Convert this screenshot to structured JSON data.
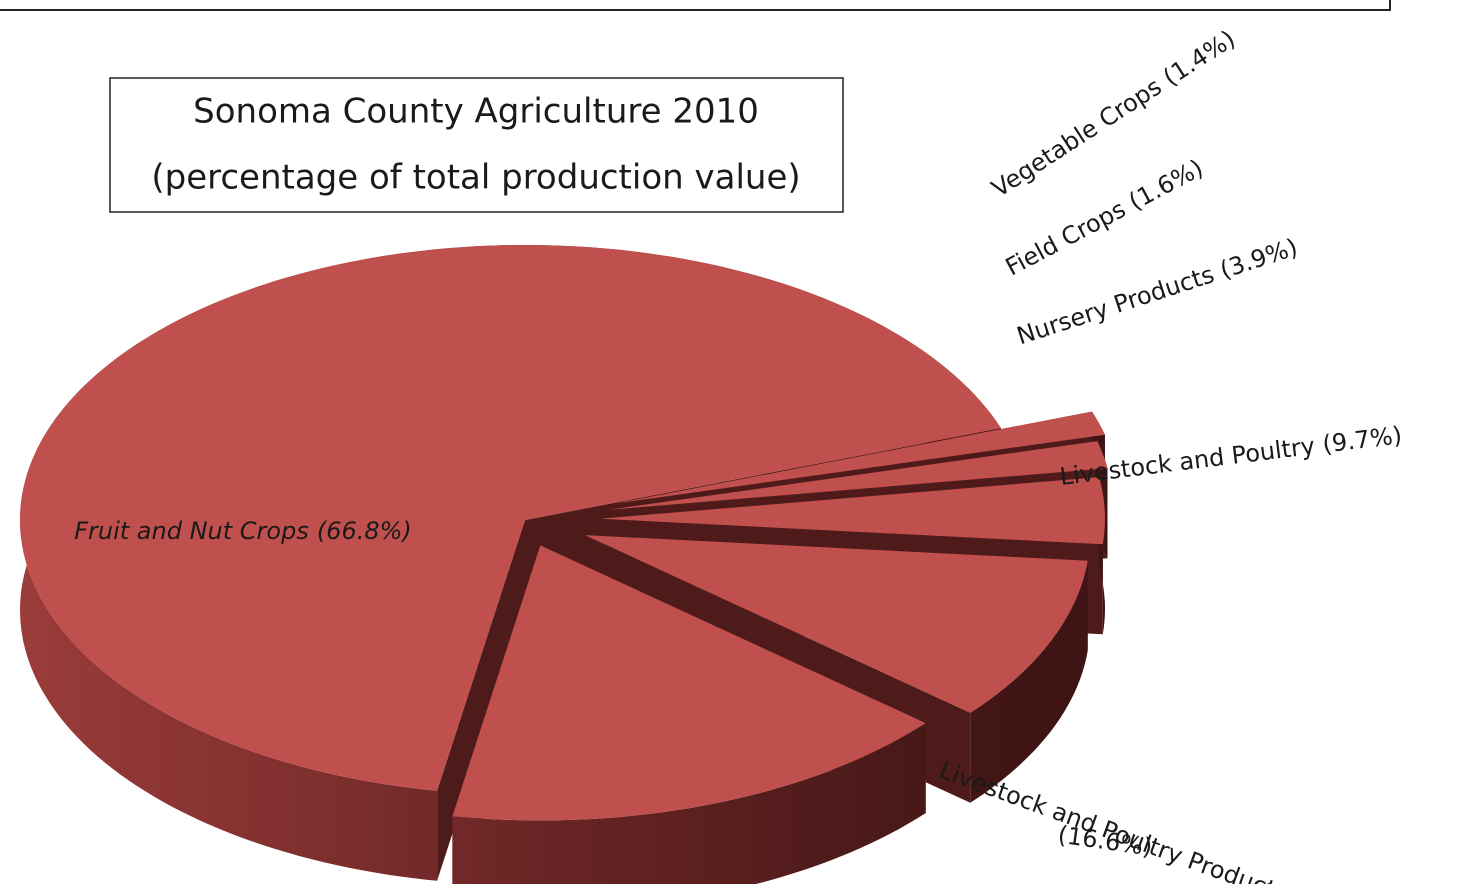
{
  "chart_data": {
    "type": "pie",
    "title": "Sonoma County Agriculture 2010",
    "subtitle": "(percentage of total production value)",
    "categories": [
      "Fruit and Nut Crops",
      "Livestock and Poultry Products",
      "Livestock and Poultry",
      "Nursery Products",
      "Field Crops",
      "Vegetable Crops"
    ],
    "values": [
      66.8,
      16.6,
      9.7,
      3.9,
      1.6,
      1.4
    ],
    "value_labels": [
      "(66.8%)",
      "(16.6%)",
      "(9.7%)",
      "(3.9%)",
      "(1.6%)",
      "(1.4%)"
    ],
    "color": "#c0504d"
  }
}
